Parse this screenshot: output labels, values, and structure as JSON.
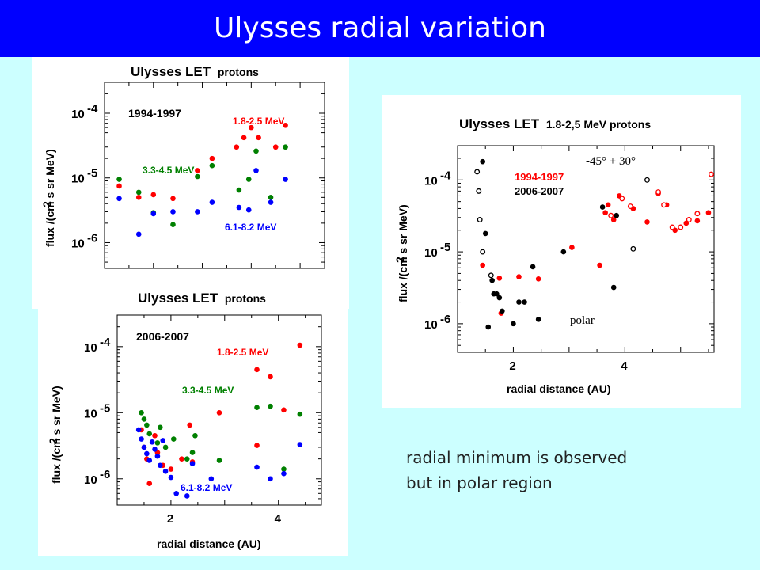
{
  "slide": {
    "title": "Ulysses radial variation",
    "note_line1": "radial minimum is observed",
    "note_line2": "but in polar region"
  },
  "colors": {
    "title_bg": "#0000ff",
    "slide_bg": "#ccffff",
    "red": "#ff0000",
    "green": "#008000",
    "blue": "#0000ff",
    "black": "#000000"
  },
  "chart_data": [
    {
      "type": "scatter",
      "title_main": "Ulysses LET",
      "title_sub": "protons",
      "period": "1994-1997",
      "ylabel": "flux  /(cm s sr MeV)",
      "ylabel_sup": "2",
      "xlabel": "",
      "y_ticks": [
        "10",
        "10",
        "10"
      ],
      "y_tick_exps": [
        "-4",
        "-5",
        "-6"
      ],
      "log_y": true,
      "xlim": [
        1.0,
        5.5
      ],
      "ylim": [
        4e-07,
        0.0003
      ],
      "series": [
        {
          "name": "1.8-2.5 MeV",
          "color": "#ff0000",
          "points": [
            [
              1.3,
              7.5e-06
            ],
            [
              1.7,
              5e-06
            ],
            [
              2.0,
              5.5e-06
            ],
            [
              2.4,
              4.8e-06
            ],
            [
              2.9,
              1.3e-05
            ],
            [
              3.2,
              2e-05
            ],
            [
              3.7,
              3e-05
            ],
            [
              3.85,
              4.2e-05
            ],
            [
              4.0,
              6e-05
            ],
            [
              4.15,
              4.2e-05
            ],
            [
              4.5,
              3e-05
            ],
            [
              4.7,
              6.5e-05
            ]
          ]
        },
        {
          "name": "3.3-4.5 MeV",
          "color": "#008000",
          "points": [
            [
              1.3,
              9.5e-06
            ],
            [
              1.7,
              6e-06
            ],
            [
              2.0,
              2.9e-06
            ],
            [
              2.4,
              1.9e-06
            ],
            [
              2.9,
              1.05e-05
            ],
            [
              3.2,
              1.55e-05
            ],
            [
              3.75,
              6.5e-06
            ],
            [
              3.95,
              9.5e-06
            ],
            [
              4.1,
              2.6e-05
            ],
            [
              4.4,
              5e-06
            ],
            [
              4.7,
              3e-05
            ]
          ]
        },
        {
          "name": "6.1-8.2 MeV",
          "color": "#0000ff",
          "points": [
            [
              1.3,
              4.8e-06
            ],
            [
              1.7,
              1.35e-06
            ],
            [
              2.0,
              2.8e-06
            ],
            [
              2.4,
              3e-06
            ],
            [
              2.9,
              3e-06
            ],
            [
              3.2,
              4.2e-06
            ],
            [
              3.75,
              3.5e-06
            ],
            [
              3.95,
              3.2e-06
            ],
            [
              4.1,
              1.3e-05
            ],
            [
              4.4,
              4.2e-06
            ],
            [
              4.7,
              9.5e-06
            ]
          ]
        }
      ]
    },
    {
      "type": "scatter",
      "title_main": "Ulysses LET",
      "title_sub": "protons",
      "period": "2006-2007",
      "ylabel": "flux  /(cm s sr MeV)",
      "ylabel_sup": "2",
      "xlabel": "radial distance (AU)",
      "x_ticks": [
        "2",
        "4"
      ],
      "y_ticks": [
        "10",
        "10",
        "10"
      ],
      "y_tick_exps": [
        "-4",
        "-5",
        "-6"
      ],
      "log_y": true,
      "xlim": [
        1.0,
        4.8
      ],
      "ylim": [
        4e-07,
        0.0003
      ],
      "series": [
        {
          "name": "1.8-2.5 MeV",
          "color": "#ff0000",
          "points": [
            [
              1.45,
              5.5e-06
            ],
            [
              1.5,
              3e-06
            ],
            [
              1.55,
              2e-06
            ],
            [
              1.6,
              8.5e-07
            ],
            [
              1.7,
              4.5e-06
            ],
            [
              1.75,
              2.5e-06
            ],
            [
              1.85,
              1.6e-06
            ],
            [
              2.0,
              1.4e-06
            ],
            [
              2.2,
              2e-06
            ],
            [
              2.35,
              6.5e-06
            ],
            [
              2.4,
              1.8e-06
            ],
            [
              2.9,
              1e-05
            ],
            [
              3.6,
              3.2e-06
            ],
            [
              3.6,
              4.5e-05
            ],
            [
              3.85,
              3.5e-05
            ],
            [
              4.1,
              1.1e-05
            ],
            [
              4.4,
              0.000105
            ]
          ]
        },
        {
          "name": "3.3-4.5 MeV",
          "color": "#008000",
          "points": [
            [
              1.45,
              1e-05
            ],
            [
              1.5,
              8e-06
            ],
            [
              1.55,
              6.5e-06
            ],
            [
              1.6,
              4.8e-06
            ],
            [
              1.75,
              3.5e-06
            ],
            [
              1.8,
              6e-06
            ],
            [
              1.9,
              3e-06
            ],
            [
              2.05,
              4e-06
            ],
            [
              2.3,
              2e-06
            ],
            [
              2.4,
              2.5e-06
            ],
            [
              2.45,
              4.5e-06
            ],
            [
              2.9,
              1.9e-06
            ],
            [
              3.6,
              1.2e-05
            ],
            [
              3.85,
              1.25e-05
            ],
            [
              4.1,
              1.4e-06
            ],
            [
              4.4,
              9.5e-06
            ]
          ]
        },
        {
          "name": "6.1-8.2 MeV",
          "color": "#0000ff",
          "points": [
            [
              1.4,
              5.5e-06
            ],
            [
              1.45,
              4e-06
            ],
            [
              1.5,
              3e-06
            ],
            [
              1.55,
              2.4e-06
            ],
            [
              1.6,
              1.9e-06
            ],
            [
              1.65,
              3.6e-06
            ],
            [
              1.7,
              2.8e-06
            ],
            [
              1.75,
              2.2e-06
            ],
            [
              1.8,
              1.6e-06
            ],
            [
              1.85,
              3.8e-06
            ],
            [
              1.9,
              1.3e-06
            ],
            [
              2.0,
              1.05e-06
            ],
            [
              2.1,
              6e-07
            ],
            [
              2.3,
              5.5e-07
            ],
            [
              2.4,
              1.7e-06
            ],
            [
              2.75,
              1e-06
            ],
            [
              3.6,
              1.5e-06
            ],
            [
              3.85,
              1e-06
            ],
            [
              4.1,
              1.2e-06
            ],
            [
              4.4,
              3.3e-06
            ]
          ]
        }
      ]
    },
    {
      "type": "scatter",
      "title_main": "Ulysses LET",
      "title_sub": "1.8-2,5 MeV protons",
      "ylabel": "flux  /(cm s sr MeV)",
      "ylabel_sup": "2",
      "xlabel": "radial distance (AU)",
      "x_ticks": [
        "2",
        "4"
      ],
      "y_ticks": [
        "10",
        "10",
        "10"
      ],
      "y_tick_exps": [
        "-4",
        "-5",
        "-6"
      ],
      "log_y": true,
      "xlim": [
        1.0,
        5.6
      ],
      "ylim": [
        4e-07,
        0.0003
      ],
      "annotations": [
        "-45° + 30°",
        "polar"
      ],
      "series": [
        {
          "name": "1994-1997",
          "color": "#ff0000",
          "points": [
            [
              1.45,
              6.5e-06
            ],
            [
              1.75,
              4.3e-06
            ],
            [
              1.78,
              1.4e-06
            ],
            [
              2.1,
              4.5e-06
            ],
            [
              2.45,
              4.2e-06
            ],
            [
              3.05,
              1.15e-05
            ],
            [
              3.55,
              6.5e-06
            ],
            [
              3.65,
              3.5e-05
            ],
            [
              3.7,
              4.5e-05
            ],
            [
              3.8,
              2.8e-05
            ],
            [
              3.9,
              6e-05
            ],
            [
              4.15,
              4e-05
            ],
            [
              4.4,
              2.6e-05
            ],
            [
              4.6,
              6.5e-05
            ],
            [
              4.75,
              4.5e-05
            ],
            [
              4.9,
              2e-05
            ],
            [
              5.1,
              2.5e-05
            ],
            [
              5.3,
              2.7e-05
            ],
            [
              5.5,
              3.5e-05
            ]
          ]
        },
        {
          "name": "2006-2007",
          "color": "#000000",
          "points": [
            [
              1.45,
              0.00018
            ],
            [
              1.5,
              1.8e-05
            ],
            [
              1.55,
              9e-07
            ],
            [
              1.62,
              4e-06
            ],
            [
              1.65,
              2.6e-06
            ],
            [
              1.7,
              2.6e-06
            ],
            [
              1.75,
              2.3e-06
            ],
            [
              1.8,
              1.5e-06
            ],
            [
              2.0,
              1e-06
            ],
            [
              2.1,
              2e-06
            ],
            [
              2.2,
              2e-06
            ],
            [
              2.35,
              6.2e-06
            ],
            [
              2.45,
              1.15e-06
            ],
            [
              2.9,
              1e-05
            ],
            [
              3.6,
              4.2e-05
            ],
            [
              3.8,
              3.2e-06
            ],
            [
              3.85,
              3.2e-05
            ]
          ]
        },
        {
          "name": "1994-1997 (polar, open)",
          "color": "#ff0000",
          "open": true,
          "points": [
            [
              3.75,
              3.2e-05
            ],
            [
              3.95,
              5.5e-05
            ],
            [
              4.1,
              4.3e-05
            ],
            [
              4.6,
              6.8e-05
            ],
            [
              4.7,
              4.5e-05
            ],
            [
              4.85,
              2.2e-05
            ],
            [
              5.0,
              2.2e-05
            ],
            [
              5.15,
              2.8e-05
            ],
            [
              5.3,
              3.4e-05
            ],
            [
              5.55,
              0.00012
            ]
          ]
        },
        {
          "name": "2006-2007 (polar, open)",
          "color": "#000000",
          "open": true,
          "points": [
            [
              1.35,
              0.00013
            ],
            [
              1.38,
              7e-05
            ],
            [
              1.4,
              2.8e-05
            ],
            [
              1.45,
              1e-05
            ],
            [
              1.6,
              4.7e-06
            ],
            [
              4.15,
              1.1e-05
            ],
            [
              4.4,
              0.0001
            ]
          ]
        }
      ]
    }
  ]
}
